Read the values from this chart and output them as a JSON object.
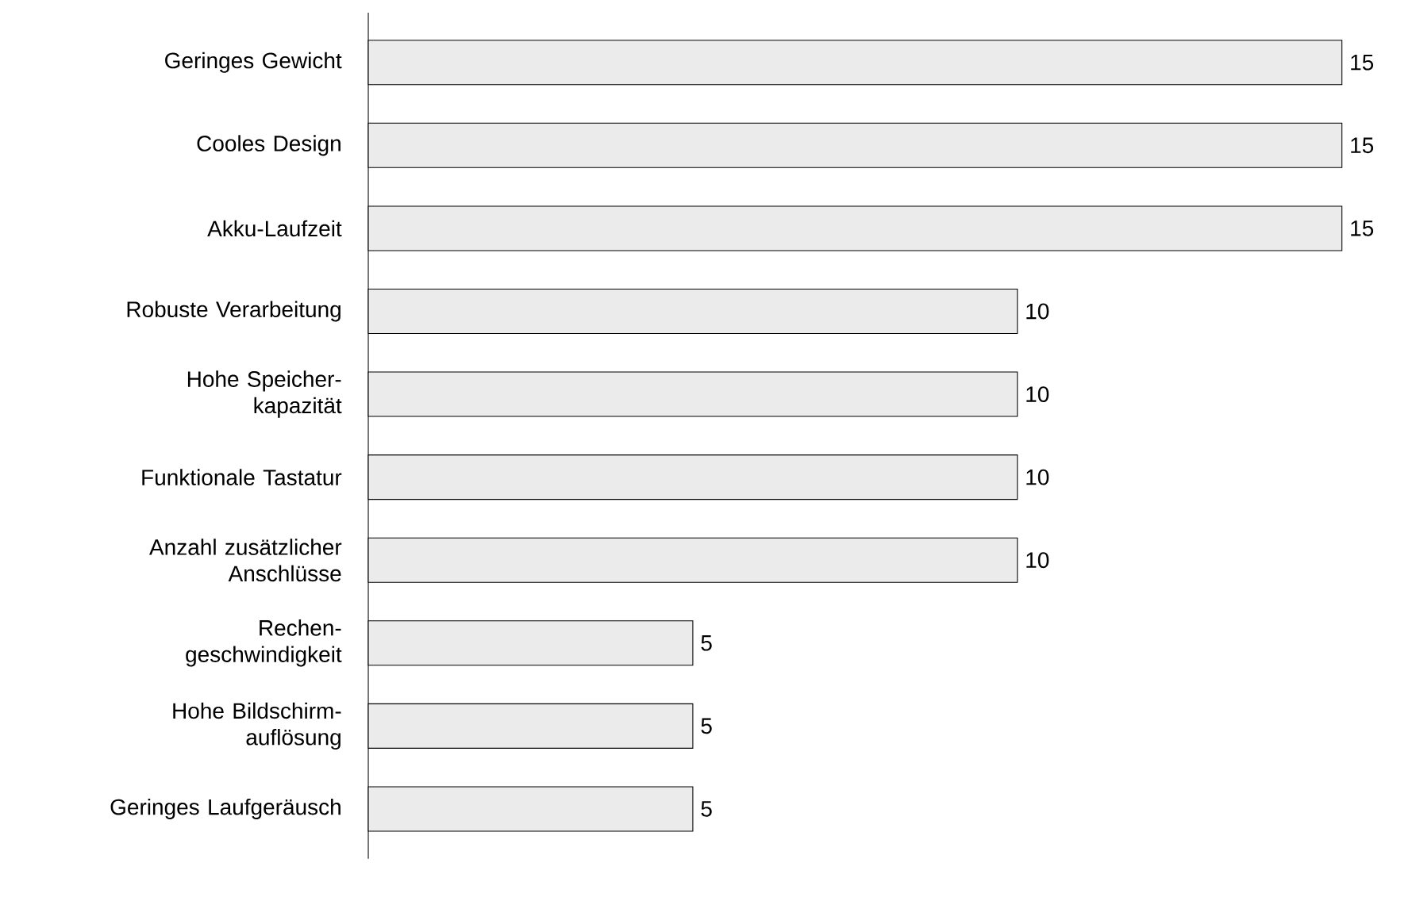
{
  "chart_data": {
    "type": "bar",
    "orientation": "horizontal",
    "data_labels": true,
    "color": "#ebebeb",
    "categories": [
      "Geringes Gewicht",
      "Cooles Design",
      "Akku-Laufzeit",
      "Robuste Verarbeitung",
      "Hohe Speicher-kapazität",
      "Funktionale Tastatur",
      "Anzahl zusätzlicher Anschlüsse",
      "Rechen-geschwindigkeit",
      "Hohe Bildschirm-auflösung",
      "Geringes Laufgeräusch"
    ],
    "values": [
      15,
      15,
      15,
      10,
      10,
      10,
      10,
      5,
      5,
      5
    ]
  }
}
